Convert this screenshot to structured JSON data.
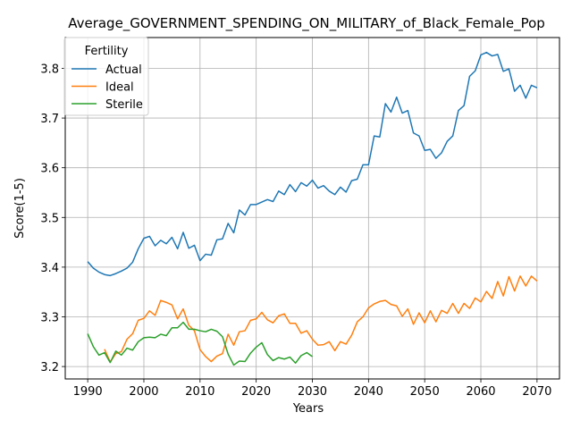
{
  "chart_data": {
    "type": "line",
    "title": "Average_GOVERNMENT_SPENDING_ON_MILITARY_of_Black_Female_Pop",
    "xlabel": "Years",
    "ylabel": "Score(1-5)",
    "xlim": [
      1986,
      2074
    ],
    "ylim": [
      3.175,
      3.862
    ],
    "xticks": [
      1990,
      2000,
      2010,
      2020,
      2030,
      2040,
      2050,
      2060,
      2070
    ],
    "yticks": [
      3.2,
      3.3,
      3.4,
      3.5,
      3.6,
      3.7,
      3.8
    ],
    "ytick_labels": [
      "3.2",
      "3.3",
      "3.4",
      "3.5",
      "3.6",
      "3.7",
      "3.8"
    ],
    "grid": true,
    "legend": {
      "title": "Fertility",
      "placement": "top-left"
    },
    "series": [
      {
        "name": "Actual",
        "color": "#1f77b4",
        "x": [
          1990,
          1991,
          1992,
          1993,
          1994,
          1995,
          1996,
          1997,
          1998,
          1999,
          2000,
          2001,
          2002,
          2003,
          2004,
          2005,
          2006,
          2007,
          2008,
          2009,
          2010,
          2011,
          2012,
          2013,
          2014,
          2015,
          2016,
          2017,
          2018,
          2019,
          2020,
          2021,
          2022,
          2023,
          2024,
          2025,
          2026,
          2027,
          2028,
          2029,
          2030,
          2031,
          2032,
          2033,
          2034,
          2035,
          2036,
          2037,
          2038,
          2039,
          2040,
          2041,
          2042,
          2043,
          2044,
          2045,
          2046,
          2047,
          2048,
          2049,
          2050,
          2051,
          2052,
          2053,
          2054,
          2055,
          2056,
          2057,
          2058,
          2059,
          2060,
          2061,
          2062,
          2063,
          2064,
          2065,
          2066,
          2067,
          2068,
          2069,
          2070
        ],
        "y": [
          3.411,
          3.398,
          3.39,
          3.385,
          3.383,
          3.387,
          3.392,
          3.398,
          3.41,
          3.437,
          3.458,
          3.462,
          3.443,
          3.454,
          3.447,
          3.46,
          3.437,
          3.47,
          3.438,
          3.444,
          3.413,
          3.426,
          3.424,
          3.455,
          3.457,
          3.488,
          3.469,
          3.515,
          3.505,
          3.526,
          3.526,
          3.531,
          3.536,
          3.532,
          3.553,
          3.546,
          3.566,
          3.552,
          3.57,
          3.563,
          3.575,
          3.559,
          3.564,
          3.553,
          3.546,
          3.561,
          3.551,
          3.574,
          3.577,
          3.606,
          3.606,
          3.664,
          3.662,
          3.729,
          3.712,
          3.742,
          3.71,
          3.715,
          3.67,
          3.664,
          3.635,
          3.637,
          3.619,
          3.63,
          3.653,
          3.664,
          3.715,
          3.725,
          3.784,
          3.795,
          3.827,
          3.832,
          3.825,
          3.828,
          3.794,
          3.799,
          3.754,
          3.766,
          3.74,
          3.766,
          3.761
        ]
      },
      {
        "name": "Ideal",
        "color": "#ff7f0e",
        "x": [
          1993,
          1994,
          1995,
          1996,
          1997,
          1998,
          1999,
          2000,
          2001,
          2002,
          2003,
          2004,
          2005,
          2006,
          2007,
          2008,
          2009,
          2010,
          2011,
          2012,
          2013,
          2014,
          2015,
          2016,
          2017,
          2018,
          2019,
          2020,
          2021,
          2022,
          2023,
          2024,
          2025,
          2026,
          2027,
          2028,
          2029,
          2030,
          2031,
          2032,
          2033,
          2034,
          2035,
          2036,
          2037,
          2038,
          2039,
          2040,
          2041,
          2042,
          2043,
          2044,
          2045,
          2046,
          2047,
          2048,
          2049,
          2050,
          2051,
          2052,
          2053,
          2054,
          2055,
          2056,
          2057,
          2058,
          2059,
          2060,
          2061,
          2062,
          2063,
          2064,
          2065,
          2066,
          2067,
          2068,
          2069,
          2070
        ],
        "y": [
          3.235,
          3.209,
          3.226,
          3.23,
          3.255,
          3.266,
          3.293,
          3.297,
          3.312,
          3.303,
          3.333,
          3.329,
          3.324,
          3.296,
          3.316,
          3.283,
          3.272,
          3.234,
          3.22,
          3.21,
          3.221,
          3.226,
          3.265,
          3.243,
          3.27,
          3.272,
          3.293,
          3.296,
          3.309,
          3.294,
          3.288,
          3.302,
          3.306,
          3.287,
          3.287,
          3.267,
          3.272,
          3.255,
          3.243,
          3.244,
          3.25,
          3.232,
          3.25,
          3.245,
          3.263,
          3.29,
          3.3,
          3.318,
          3.326,
          3.331,
          3.333,
          3.325,
          3.322,
          3.301,
          3.316,
          3.285,
          3.308,
          3.288,
          3.312,
          3.29,
          3.313,
          3.307,
          3.327,
          3.307,
          3.327,
          3.317,
          3.338,
          3.33,
          3.351,
          3.337,
          3.371,
          3.342,
          3.381,
          3.352,
          3.382,
          3.362,
          3.382,
          3.372
        ]
      },
      {
        "name": "Sterile",
        "color": "#2ca02c",
        "x": [
          1990,
          1991,
          1992,
          1993,
          1994,
          1995,
          1996,
          1997,
          1998,
          1999,
          2000,
          2001,
          2002,
          2003,
          2004,
          2005,
          2006,
          2007,
          2008,
          2009,
          2010,
          2011,
          2012,
          2013,
          2014,
          2015,
          2016,
          2017,
          2018,
          2019,
          2020,
          2021,
          2022,
          2023,
          2024,
          2025,
          2026,
          2027,
          2028,
          2029,
          2030
        ],
        "y": [
          3.266,
          3.24,
          3.223,
          3.228,
          3.208,
          3.231,
          3.223,
          3.237,
          3.233,
          3.25,
          3.258,
          3.259,
          3.258,
          3.265,
          3.262,
          3.278,
          3.278,
          3.289,
          3.275,
          3.275,
          3.272,
          3.27,
          3.275,
          3.271,
          3.26,
          3.225,
          3.203,
          3.211,
          3.21,
          3.227,
          3.239,
          3.248,
          3.224,
          3.212,
          3.218,
          3.215,
          3.219,
          3.207,
          3.222,
          3.228,
          3.22
        ]
      }
    ]
  }
}
